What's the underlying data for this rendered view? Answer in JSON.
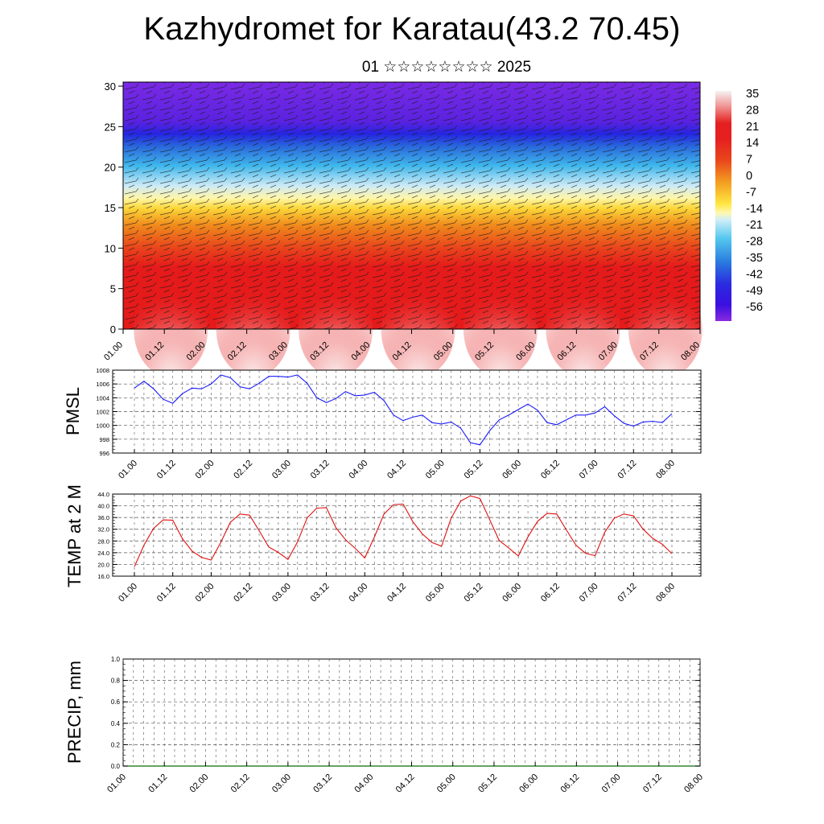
{
  "header": {
    "title": "Kazhydromet for Karatau(43.2 70.45)",
    "subtitle": "01 ☆☆☆☆☆☆☆☆ 2025"
  },
  "colors": {
    "pmsl_line": "#1a1aff",
    "temp_line": "#e01010",
    "precip_line": "#0a6a0a",
    "grid_dash": "#555555"
  },
  "time_ticks": [
    "01.00",
    "01.12",
    "02.00",
    "02.12",
    "03.00",
    "03.12",
    "04.00",
    "04.12",
    "05.00",
    "05.12",
    "06.00",
    "06.12",
    "07.00",
    "07.12",
    "08.00"
  ],
  "chart_data": [
    {
      "type": "heatmap",
      "name": "cross-section",
      "x_ticks": [
        "01.00",
        "01.12",
        "02.00",
        "02.12",
        "03.00",
        "03.12",
        "04.00",
        "04.12",
        "05.00",
        "05.12",
        "06.00",
        "06.12",
        "07.00",
        "07.12",
        "08.00"
      ],
      "y_ticks": [
        0,
        5,
        10,
        15,
        20,
        25,
        30
      ],
      "ylim": [
        0,
        30.5
      ],
      "colorbar_labels": [
        "35",
        "28",
        "21",
        "14",
        "7",
        "0",
        "-7",
        "-14",
        "-21",
        "-28",
        "-35",
        "-42",
        "-49",
        "-56"
      ],
      "colormap": [
        "#f6f3f3",
        "#f08f8f",
        "#e51f1f",
        "#e54a1e",
        "#ee7e1a",
        "#f7b22a",
        "#ffe640",
        "#fff8b0",
        "#d0eef8",
        "#55c8ee",
        "#2a7ee0",
        "#2a40e0",
        "#3a1de0",
        "#8a2ae0"
      ],
      "arrows": "wind barbs"
    },
    {
      "type": "line",
      "name": "PMSL",
      "ylabel": "PMSL",
      "ylim": [
        996,
        1008
      ],
      "y_ticks": [
        "1008",
        "1006",
        "1004",
        "1002",
        "1000",
        "998",
        "996"
      ],
      "x": [
        0,
        3,
        6,
        9,
        12,
        15,
        18,
        21,
        24,
        27,
        30,
        33,
        36,
        39,
        42,
        45,
        48,
        51,
        54,
        57,
        60,
        63,
        66,
        69,
        72,
        75,
        78,
        81,
        84,
        87,
        90,
        93,
        96,
        99,
        102,
        105,
        108,
        111,
        114,
        117,
        120,
        123,
        126,
        129,
        132,
        135,
        138,
        141,
        144,
        147,
        150,
        153,
        156,
        159,
        162,
        165,
        168
      ],
      "values": [
        1005.4,
        1006.4,
        1005.3,
        1003.8,
        1003.2,
        1004.6,
        1005.4,
        1005.3,
        1006.0,
        1007.3,
        1006.9,
        1005.6,
        1005.3,
        1006.1,
        1007.1,
        1007.1,
        1007.0,
        1007.3,
        1006.1,
        1004.0,
        1003.3,
        1003.9,
        1004.9,
        1004.3,
        1004.4,
        1004.8,
        1003.6,
        1001.5,
        1000.7,
        1001.2,
        1001.5,
        1000.4,
        1000.2,
        1000.5,
        999.6,
        997.5,
        997.2,
        999.2,
        1000.8,
        1001.5,
        1002.3,
        1003.1,
        1002.2,
        1000.4,
        1000.1,
        1000.8,
        1001.5,
        1001.5,
        1001.8,
        1002.7,
        1001.4,
        1000.3,
        999.9,
        1000.5,
        1000.6,
        1000.4,
        1001.7
      ]
    },
    {
      "type": "line",
      "name": "TEMP at 2 M",
      "ylabel": "TEMP at 2 M",
      "ylim": [
        16,
        44
      ],
      "y_ticks": [
        "44.0",
        "40.0",
        "36.0",
        "32.0",
        "28.0",
        "24.0",
        "20.0",
        "16.0"
      ],
      "x": [
        0,
        3,
        6,
        9,
        12,
        15,
        18,
        21,
        24,
        27,
        30,
        33,
        36,
        39,
        42,
        45,
        48,
        51,
        54,
        57,
        60,
        63,
        66,
        69,
        72,
        75,
        78,
        81,
        84,
        87,
        90,
        93,
        96,
        99,
        102,
        105,
        108,
        111,
        114,
        117,
        120,
        123,
        126,
        129,
        132,
        135,
        138,
        141,
        144,
        147,
        150,
        153,
        156,
        159,
        162,
        165,
        168
      ],
      "values": [
        19.2,
        26.6,
        32.3,
        35.2,
        35.1,
        28.8,
        24.6,
        22.4,
        21.5,
        27.5,
        34.4,
        37.2,
        36.8,
        31.5,
        25.9,
        24.1,
        21.7,
        27.7,
        35.9,
        39.2,
        39.4,
        32.5,
        28.4,
        25.5,
        22.2,
        29.3,
        37.2,
        40.4,
        40.6,
        34.6,
        30.4,
        27.5,
        26.2,
        35.8,
        41.6,
        43.4,
        42.5,
        35.4,
        28.2,
        25.6,
        22.9,
        29.4,
        34.7,
        37.4,
        37.2,
        31.8,
        26.6,
        23.8,
        23.0,
        31.0,
        35.8,
        37.2,
        36.6,
        32.0,
        28.9,
        26.9,
        23.7
      ]
    },
    {
      "type": "line",
      "name": "PRECIP, mm",
      "ylabel": "PRECIP, mm",
      "ylim": [
        0,
        1
      ],
      "y_ticks": [
        "1.0",
        "0.8",
        "0.6",
        "0.4",
        "0.2",
        "0.0"
      ],
      "values_all": 0.0
    }
  ]
}
